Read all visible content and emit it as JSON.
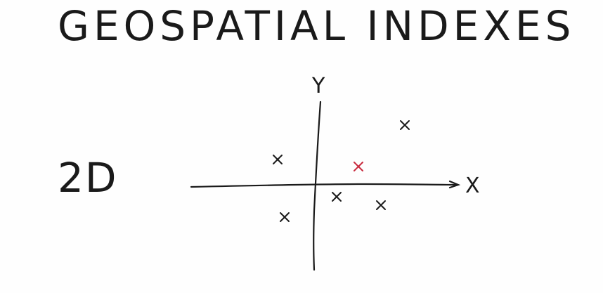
{
  "title": "GEOSPATIAL INDEXES",
  "dimension_label": "2D",
  "colors": {
    "ink": "#1a1a1a",
    "highlight": "#c8283c"
  },
  "axes": {
    "x_label": "X",
    "y_label": "Y"
  },
  "points": [
    {
      "name": "point-upper-right",
      "highlight": false
    },
    {
      "name": "point-upper-left",
      "highlight": false
    },
    {
      "name": "point-query",
      "highlight": true
    },
    {
      "name": "point-lower-center",
      "highlight": false
    },
    {
      "name": "point-lower-right",
      "highlight": false
    },
    {
      "name": "point-lower-left",
      "highlight": false
    }
  ]
}
